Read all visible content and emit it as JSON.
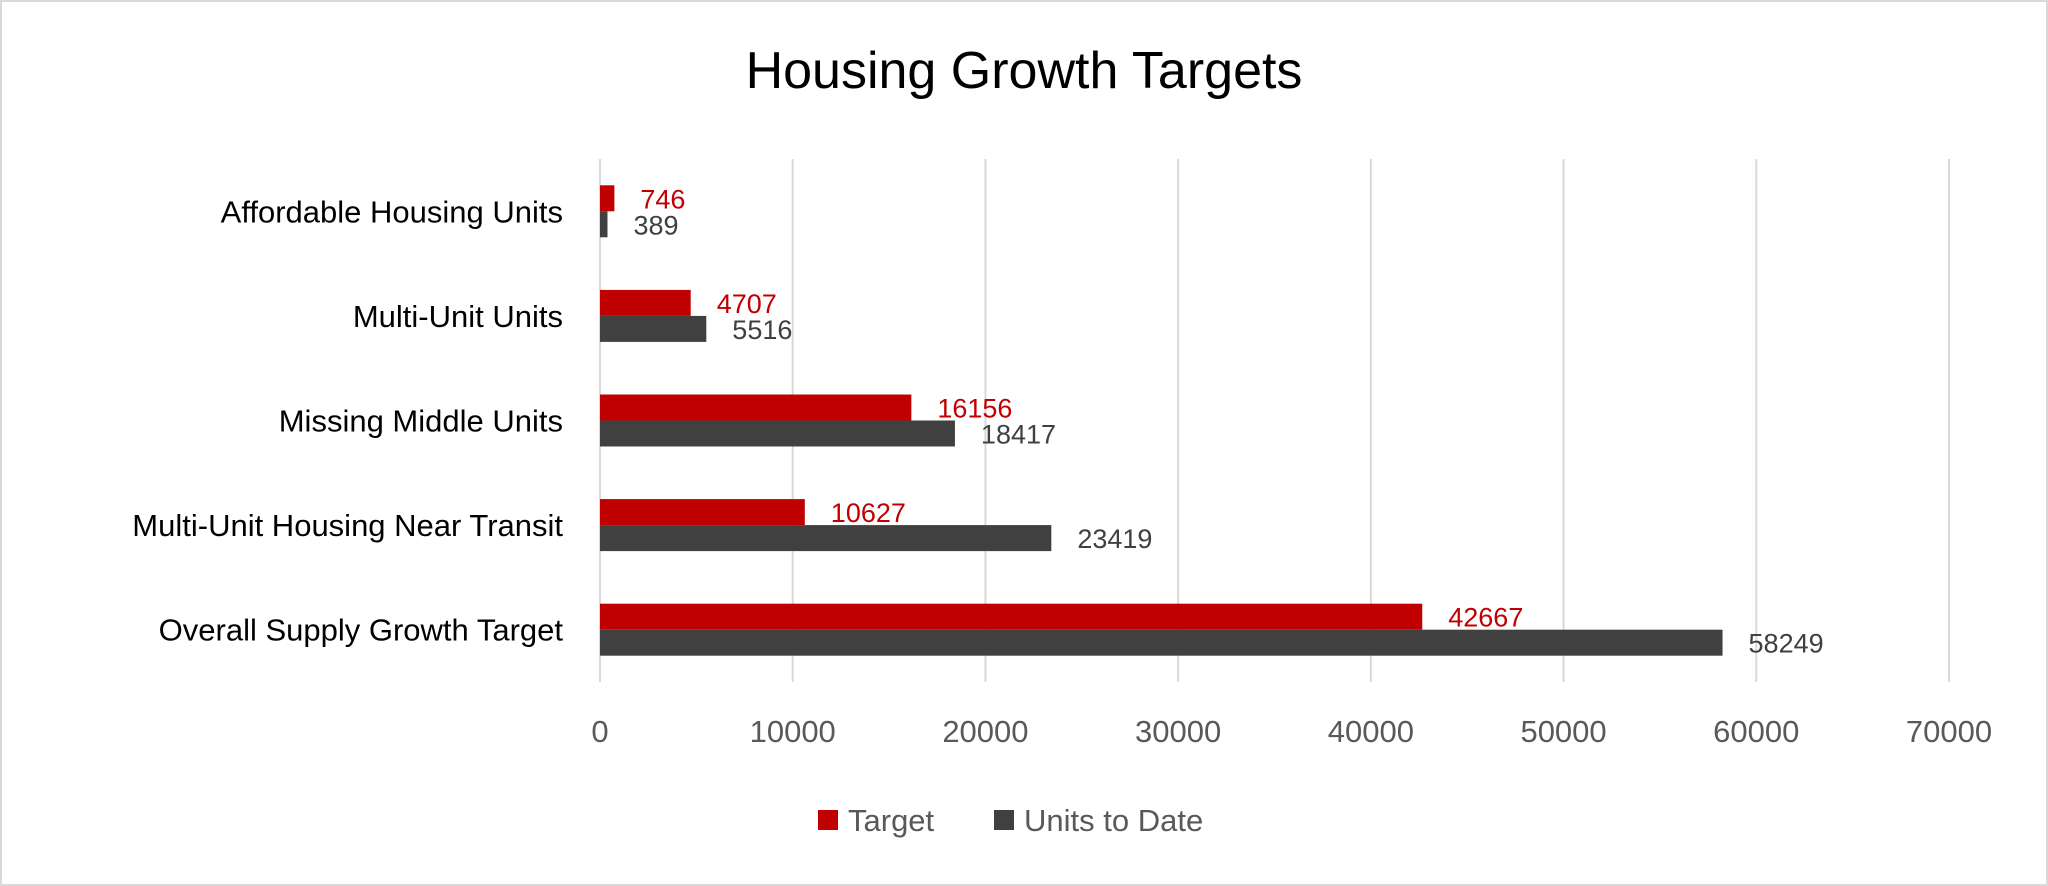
{
  "chart_data": {
    "type": "bar",
    "orientation": "horizontal",
    "title": "Housing Growth Targets",
    "categories": [
      "Affordable Housing Units",
      "Multi-Unit Units",
      "Missing Middle Units",
      "Multi-Unit Housing Near Transit",
      "Overall Supply Growth Target"
    ],
    "series": [
      {
        "name": "Target",
        "color": "#c00000",
        "values": [
          746,
          4707,
          16156,
          10627,
          42667
        ]
      },
      {
        "name": "Units to Date",
        "color": "#404040",
        "values": [
          389,
          5516,
          18417,
          23419,
          58249
        ]
      }
    ],
    "xlim": [
      0,
      70000
    ],
    "xticks": [
      "0",
      "10000",
      "20000",
      "30000",
      "40000",
      "50000",
      "60000",
      "70000"
    ],
    "grid": true,
    "data_labels": true,
    "legend_position": "bottom"
  }
}
